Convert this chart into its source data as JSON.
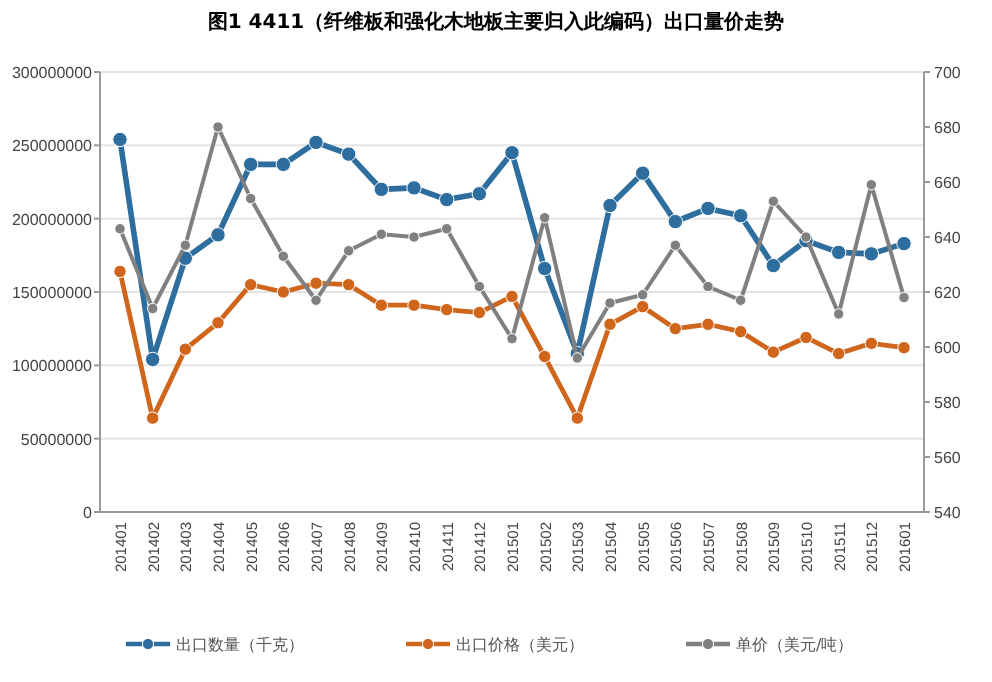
{
  "chart_data": {
    "type": "line",
    "title": "图1    4411（纤维板和强化木地板主要归入此编码）出口量价走势",
    "categories": [
      "201401",
      "201402",
      "201403",
      "201404",
      "201405",
      "201406",
      "201407",
      "201408",
      "201409",
      "201410",
      "201411",
      "201412",
      "201501",
      "201502",
      "201503",
      "201504",
      "201505",
      "201506",
      "201507",
      "201508",
      "201509",
      "201510",
      "201511",
      "201512",
      "201601"
    ],
    "series": [
      {
        "name": "出口数量（千克）",
        "color": "#2e6e9e",
        "values": [
          254000000,
          104000000,
          173000000,
          189000000,
          237000000,
          237000000,
          252000000,
          244000000,
          220000000,
          221000000,
          213000000,
          217000000,
          245000000,
          166000000,
          108000000,
          209000000,
          231000000,
          198000000,
          207000000,
          202000000,
          168000000,
          185000000,
          177000000,
          176000000,
          183000000
        ]
      },
      {
        "name": "出口价格（美元）",
        "color": "#d0661c",
        "values": [
          164000000,
          64000000,
          111000000,
          129000000,
          155000000,
          150000000,
          156000000,
          155000000,
          141000000,
          141000000,
          138000000,
          136000000,
          147000000,
          106000000,
          64000000,
          128000000,
          140000000,
          125000000,
          128000000,
          123000000,
          109000000,
          119000000,
          108000000,
          115000000,
          112000000
        ]
      },
      {
        "name": "单价（美元/吨）",
        "color": "#808080",
        "axis": "y2",
        "values": [
          643,
          614,
          637,
          680,
          654,
          633,
          617,
          635,
          641,
          640,
          643,
          622,
          603,
          647,
          596,
          616,
          619,
          637,
          622,
          617,
          653,
          640,
          612,
          659,
          618
        ]
      }
    ],
    "ylim": [
      0,
      300000000
    ],
    "yticks": [
      0,
      50000000,
      100000000,
      150000000,
      200000000,
      250000000,
      300000000
    ],
    "y2lim": [
      540,
      700
    ],
    "y2ticks": [
      540,
      560,
      580,
      600,
      620,
      640,
      660,
      680,
      700
    ],
    "grid": "y",
    "legend": "bottom",
    "marker": "circle",
    "line_style": "solid"
  }
}
